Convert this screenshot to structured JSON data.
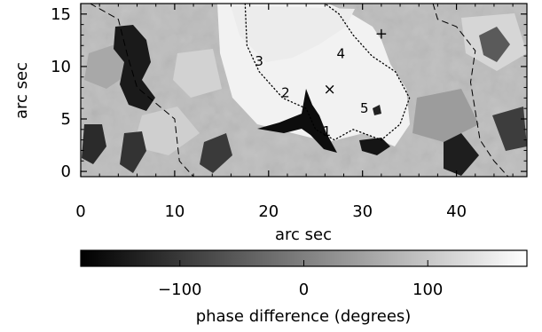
{
  "chart_data": {
    "type": "heatmap",
    "title": "",
    "xlabel": "arc sec",
    "ylabel": "arc sec",
    "xlim": [
      0,
      47.5
    ],
    "ylim": [
      -0.5,
      16
    ],
    "xticks": [
      0,
      10,
      20,
      30,
      40
    ],
    "yticks": [
      0,
      5,
      10,
      15
    ],
    "grid": false,
    "colormap": "grayscale, black = low, white = high",
    "colorbar": {
      "label": "phase difference (degrees)",
      "range": [
        -180,
        180
      ],
      "ticks": [
        -100,
        0,
        100
      ],
      "tick_labels": [
        "−100",
        "0",
        "100"
      ]
    },
    "annotations": [
      {
        "text": "1",
        "x": 26.2,
        "y": 3.8
      },
      {
        "text": "2",
        "x": 21.8,
        "y": 7.5
      },
      {
        "text": "3",
        "x": 19.0,
        "y": 10.5
      },
      {
        "text": "4",
        "x": 27.7,
        "y": 11.2
      },
      {
        "text": "5",
        "x": 30.2,
        "y": 6.0
      },
      {
        "text": "×",
        "x": 26.5,
        "y": 7.8
      },
      {
        "text": "+",
        "x": 32.0,
        "y": 13.1
      }
    ],
    "contours": [
      {
        "style": "dashed",
        "points": [
          [
            1,
            16
          ],
          [
            4,
            14.5
          ],
          [
            5,
            11
          ],
          [
            6,
            8
          ],
          [
            8,
            6.5
          ],
          [
            10,
            5
          ],
          [
            10.5,
            1
          ],
          [
            12,
            -0.5
          ]
        ]
      },
      {
        "style": "dashed",
        "points": [
          [
            37.5,
            16
          ],
          [
            38,
            14.5
          ],
          [
            40,
            13.8
          ],
          [
            42,
            11.5
          ],
          [
            41.5,
            8.5
          ],
          [
            42.5,
            3
          ],
          [
            44,
            1
          ],
          [
            45.5,
            -0.5
          ]
        ]
      },
      {
        "style": "dotted",
        "points": [
          [
            17.5,
            16
          ],
          [
            17.7,
            12
          ],
          [
            19,
            9.5
          ],
          [
            21.5,
            7
          ],
          [
            24,
            6
          ],
          [
            25,
            4
          ],
          [
            27,
            3
          ],
          [
            29,
            4
          ],
          [
            32,
            3
          ],
          [
            34,
            4.5
          ],
          [
            35,
            7
          ],
          [
            33.5,
            9.5
          ],
          [
            31,
            11
          ],
          [
            29,
            13
          ],
          [
            27.5,
            15
          ],
          [
            26,
            16
          ]
        ]
      }
    ]
  },
  "colors": {
    "background": "#ffffff",
    "axis": "#000000",
    "dark_patch": "#111111",
    "light_region": "#f4f4f4"
  }
}
